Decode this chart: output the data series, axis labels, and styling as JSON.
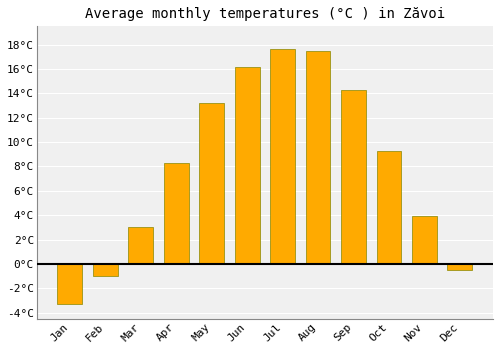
{
  "title": "Average monthly temperatures (°C ) in Zăvoi",
  "months": [
    "Jan",
    "Feb",
    "Mar",
    "Apr",
    "May",
    "Jun",
    "Jul",
    "Aug",
    "Sep",
    "Oct",
    "Nov",
    "Dec"
  ],
  "values": [
    -3.3,
    -1.0,
    3.0,
    8.3,
    13.2,
    16.2,
    17.6,
    17.5,
    14.3,
    9.3,
    3.9,
    -0.5
  ],
  "bar_color": "#FFAA00",
  "bar_color_gradient_top": "#FFD060",
  "bar_edge_color": "#888800",
  "background_color": "#FFFFFF",
  "plot_bg_color": "#F0F0F0",
  "grid_color": "#FFFFFF",
  "ylim": [
    -4.5,
    19.5
  ],
  "yticks": [
    -4,
    -2,
    0,
    2,
    4,
    6,
    8,
    10,
    12,
    14,
    16,
    18
  ],
  "title_fontsize": 10,
  "tick_fontsize": 8,
  "zero_line_color": "#000000",
  "spine_color": "#888888"
}
